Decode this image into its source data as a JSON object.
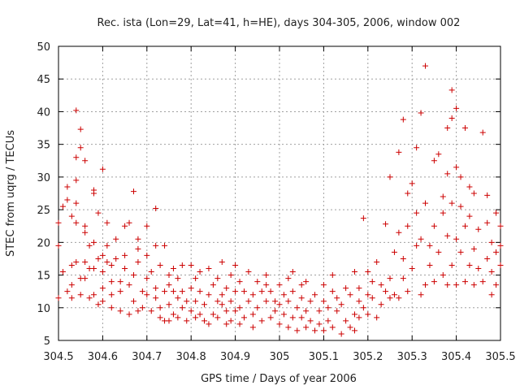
{
  "chart_data": {
    "type": "scatter",
    "title": "Rec. ista (Lon=29, Lat=41, h=HE), days 304-305, 2006, window 002",
    "xlabel": "GPS time / Days of year 2006",
    "ylabel": "STEC from uqrg / TECUs",
    "xlim": [
      304.5,
      305.5
    ],
    "ylim": [
      5,
      50
    ],
    "x_ticks": [
      "304.5",
      "304.6",
      "304.7",
      "304.8",
      "304.9",
      "305",
      "305.1",
      "305.2",
      "305.3",
      "305.4",
      "305.5"
    ],
    "y_ticks": [
      "5",
      "10",
      "15",
      "20",
      "25",
      "30",
      "35",
      "40",
      "45",
      "50"
    ],
    "x_tick_values": [
      304.5,
      304.6,
      304.7,
      304.8,
      304.9,
      305.0,
      305.1,
      305.2,
      305.3,
      305.4,
      305.5
    ],
    "y_tick_values": [
      5,
      10,
      15,
      20,
      25,
      30,
      35,
      40,
      45,
      50
    ],
    "grid": true,
    "marker": "plus",
    "color": "#cc0000",
    "points": [
      [
        304.5,
        11.5
      ],
      [
        304.5,
        19.5
      ],
      [
        304.5,
        23.0
      ],
      [
        304.51,
        25.5
      ],
      [
        304.51,
        15.5
      ],
      [
        304.52,
        26.5
      ],
      [
        304.52,
        28.5
      ],
      [
        304.52,
        12.5
      ],
      [
        304.53,
        24.0
      ],
      [
        304.53,
        16.5
      ],
      [
        304.53,
        13.5
      ],
      [
        304.53,
        11.5
      ],
      [
        304.54,
        40.2
      ],
      [
        304.54,
        33.0
      ],
      [
        304.54,
        29.5
      ],
      [
        304.54,
        26.0
      ],
      [
        304.54,
        23.0
      ],
      [
        304.54,
        17.0
      ],
      [
        304.55,
        14.5
      ],
      [
        304.55,
        12.0
      ],
      [
        304.55,
        34.5
      ],
      [
        304.55,
        37.3
      ],
      [
        304.56,
        32.5
      ],
      [
        304.56,
        22.5
      ],
      [
        304.56,
        21.5
      ],
      [
        304.56,
        17.0
      ],
      [
        304.56,
        14.5
      ],
      [
        304.57,
        11.5
      ],
      [
        304.57,
        19.5
      ],
      [
        304.57,
        16.0
      ],
      [
        304.58,
        28.0
      ],
      [
        304.58,
        27.5
      ],
      [
        304.58,
        20.0
      ],
      [
        304.58,
        16.0
      ],
      [
        304.58,
        12.0
      ],
      [
        304.59,
        10.5
      ],
      [
        304.59,
        17.5
      ],
      [
        304.59,
        24.5
      ],
      [
        304.6,
        31.2
      ],
      [
        304.6,
        18.0
      ],
      [
        304.6,
        15.5
      ],
      [
        304.6,
        13.0
      ],
      [
        304.6,
        11.0
      ],
      [
        304.61,
        17.0
      ],
      [
        304.61,
        23.0
      ],
      [
        304.61,
        19.5
      ],
      [
        304.62,
        16.5
      ],
      [
        304.62,
        14.0
      ],
      [
        304.62,
        12.0
      ],
      [
        304.62,
        10.0
      ],
      [
        304.63,
        20.5
      ],
      [
        304.63,
        17.5
      ],
      [
        304.64,
        14.0
      ],
      [
        304.64,
        9.5
      ],
      [
        304.64,
        12.5
      ],
      [
        304.65,
        18.0
      ],
      [
        304.65,
        16.0
      ],
      [
        304.65,
        22.5
      ],
      [
        304.66,
        9.0
      ],
      [
        304.66,
        13.5
      ],
      [
        304.66,
        23.0
      ],
      [
        304.67,
        27.8
      ],
      [
        304.67,
        15.0
      ],
      [
        304.67,
        11.0
      ],
      [
        304.68,
        9.5
      ],
      [
        304.68,
        19.0
      ],
      [
        304.68,
        20.5
      ],
      [
        304.68,
        17.0
      ],
      [
        304.69,
        12.5
      ],
      [
        304.69,
        10.0
      ],
      [
        304.7,
        14.5
      ],
      [
        304.7,
        22.5
      ],
      [
        304.7,
        18.0
      ],
      [
        304.7,
        12.0
      ],
      [
        304.71,
        9.5
      ],
      [
        304.71,
        15.5
      ],
      [
        304.72,
        11.5
      ],
      [
        304.72,
        13.0
      ],
      [
        304.72,
        19.5
      ],
      [
        304.72,
        25.2
      ],
      [
        304.73,
        8.5
      ],
      [
        304.73,
        10.0
      ],
      [
        304.73,
        16.5
      ],
      [
        304.74,
        12.5
      ],
      [
        304.74,
        8.0
      ],
      [
        304.74,
        19.5
      ],
      [
        304.75,
        15.0
      ],
      [
        304.75,
        13.5
      ],
      [
        304.75,
        10.5
      ],
      [
        304.75,
        8.0
      ],
      [
        304.76,
        12.5
      ],
      [
        304.76,
        9.0
      ],
      [
        304.76,
        16.0
      ],
      [
        304.77,
        11.5
      ],
      [
        304.77,
        14.5
      ],
      [
        304.77,
        8.5
      ],
      [
        304.78,
        10.0
      ],
      [
        304.78,
        16.5
      ],
      [
        304.78,
        12.5
      ],
      [
        304.79,
        8.0
      ],
      [
        304.79,
        11.0
      ],
      [
        304.8,
        9.5
      ],
      [
        304.8,
        13.0
      ],
      [
        304.8,
        16.5
      ],
      [
        304.81,
        8.5
      ],
      [
        304.81,
        11.0
      ],
      [
        304.81,
        14.5
      ],
      [
        304.82,
        12.5
      ],
      [
        304.82,
        9.0
      ],
      [
        304.82,
        15.5
      ],
      [
        304.83,
        8.0
      ],
      [
        304.83,
        10.5
      ],
      [
        304.84,
        12.0
      ],
      [
        304.84,
        16.0
      ],
      [
        304.84,
        7.5
      ],
      [
        304.85,
        9.0
      ],
      [
        304.85,
        13.5
      ],
      [
        304.86,
        11.0
      ],
      [
        304.86,
        14.5
      ],
      [
        304.86,
        8.5
      ],
      [
        304.87,
        10.5
      ],
      [
        304.87,
        17.0
      ],
      [
        304.87,
        12.0
      ],
      [
        304.88,
        7.5
      ],
      [
        304.88,
        9.5
      ],
      [
        304.88,
        13.0
      ],
      [
        304.89,
        11.0
      ],
      [
        304.89,
        15.0
      ],
      [
        304.89,
        8.0
      ],
      [
        304.9,
        16.5
      ],
      [
        304.9,
        9.5
      ],
      [
        304.9,
        12.5
      ],
      [
        304.91,
        10.0
      ],
      [
        304.91,
        7.5
      ],
      [
        304.91,
        14.0
      ],
      [
        304.92,
        12.5
      ],
      [
        304.92,
        8.5
      ],
      [
        304.93,
        11.0
      ],
      [
        304.93,
        15.5
      ],
      [
        304.94,
        9.0
      ],
      [
        304.94,
        12.0
      ],
      [
        304.94,
        7.0
      ],
      [
        304.95,
        10.0
      ],
      [
        304.95,
        14.0
      ],
      [
        304.96,
        12.5
      ],
      [
        304.96,
        8.0
      ],
      [
        304.97,
        11.0
      ],
      [
        304.97,
        13.5
      ],
      [
        304.97,
        15.0
      ],
      [
        304.98,
        8.5
      ],
      [
        304.98,
        12.5
      ],
      [
        304.99,
        9.5
      ],
      [
        304.99,
        11.0
      ],
      [
        305.0,
        13.5
      ],
      [
        305.0,
        7.5
      ],
      [
        305.0,
        10.5
      ],
      [
        305.01,
        12.0
      ],
      [
        305.01,
        9.0
      ],
      [
        305.02,
        14.5
      ],
      [
        305.02,
        7.0
      ],
      [
        305.02,
        11.0
      ],
      [
        305.03,
        8.5
      ],
      [
        305.03,
        12.5
      ],
      [
        305.03,
        15.5
      ],
      [
        305.04,
        6.5
      ],
      [
        305.04,
        10.0
      ],
      [
        305.05,
        13.5
      ],
      [
        305.05,
        8.5
      ],
      [
        305.05,
        11.5
      ],
      [
        305.06,
        7.0
      ],
      [
        305.06,
        9.5
      ],
      [
        305.06,
        14.0
      ],
      [
        305.07,
        11.0
      ],
      [
        305.07,
        8.0
      ],
      [
        305.08,
        6.5
      ],
      [
        305.08,
        12.0
      ],
      [
        305.09,
        9.5
      ],
      [
        305.09,
        7.5
      ],
      [
        305.1,
        11.0
      ],
      [
        305.1,
        13.5
      ],
      [
        305.1,
        6.5
      ],
      [
        305.11,
        10.0
      ],
      [
        305.11,
        8.0
      ],
      [
        305.12,
        12.5
      ],
      [
        305.12,
        7.0
      ],
      [
        305.12,
        15.0
      ],
      [
        305.13,
        9.5
      ],
      [
        305.13,
        11.5
      ],
      [
        305.14,
        6.0
      ],
      [
        305.14,
        10.5
      ],
      [
        305.15,
        8.0
      ],
      [
        305.15,
        13.0
      ],
      [
        305.16,
        12.0
      ],
      [
        305.16,
        7.0
      ],
      [
        305.17,
        9.0
      ],
      [
        305.17,
        6.5
      ],
      [
        305.17,
        15.5
      ],
      [
        305.18,
        11.0
      ],
      [
        305.18,
        13.0
      ],
      [
        305.18,
        8.5
      ],
      [
        305.19,
        10.0
      ],
      [
        305.19,
        23.7
      ],
      [
        305.2,
        12.0
      ],
      [
        305.2,
        9.0
      ],
      [
        305.2,
        15.5
      ],
      [
        305.21,
        11.5
      ],
      [
        305.21,
        14.0
      ],
      [
        305.22,
        8.5
      ],
      [
        305.22,
        17.0
      ],
      [
        305.23,
        13.5
      ],
      [
        305.23,
        10.5
      ],
      [
        305.24,
        12.5
      ],
      [
        305.24,
        22.8
      ],
      [
        305.25,
        14.5
      ],
      [
        305.25,
        11.5
      ],
      [
        305.25,
        30.0
      ],
      [
        305.26,
        12.0
      ],
      [
        305.26,
        18.5
      ],
      [
        305.27,
        21.5
      ],
      [
        305.27,
        33.8
      ],
      [
        305.27,
        11.5
      ],
      [
        305.28,
        14.5
      ],
      [
        305.28,
        17.5
      ],
      [
        305.28,
        38.8
      ],
      [
        305.29,
        22.5
      ],
      [
        305.29,
        27.5
      ],
      [
        305.29,
        12.5
      ],
      [
        305.3,
        16.0
      ],
      [
        305.3,
        29.0
      ],
      [
        305.31,
        19.5
      ],
      [
        305.31,
        24.5
      ],
      [
        305.31,
        34.5
      ],
      [
        305.32,
        12.0
      ],
      [
        305.32,
        20.5
      ],
      [
        305.32,
        39.8
      ],
      [
        305.33,
        13.5
      ],
      [
        305.33,
        26.0
      ],
      [
        305.33,
        47.0
      ],
      [
        305.34,
        16.5
      ],
      [
        305.34,
        19.5
      ],
      [
        305.35,
        14.0
      ],
      [
        305.35,
        22.5
      ],
      [
        305.35,
        32.5
      ],
      [
        305.36,
        33.5
      ],
      [
        305.36,
        18.5
      ],
      [
        305.37,
        15.0
      ],
      [
        305.37,
        24.5
      ],
      [
        305.37,
        27.0
      ],
      [
        305.38,
        13.5
      ],
      [
        305.38,
        21.0
      ],
      [
        305.38,
        30.5
      ],
      [
        305.38,
        37.5
      ],
      [
        305.39,
        16.5
      ],
      [
        305.39,
        26.0
      ],
      [
        305.39,
        39.0
      ],
      [
        305.39,
        43.3
      ],
      [
        305.4,
        13.5
      ],
      [
        305.4,
        20.5
      ],
      [
        305.4,
        31.5
      ],
      [
        305.4,
        40.5
      ],
      [
        305.41,
        18.5
      ],
      [
        305.41,
        25.5
      ],
      [
        305.41,
        30.0
      ],
      [
        305.42,
        14.0
      ],
      [
        305.42,
        22.5
      ],
      [
        305.42,
        37.5
      ],
      [
        305.43,
        16.5
      ],
      [
        305.43,
        28.5
      ],
      [
        305.43,
        24.0
      ],
      [
        305.44,
        19.0
      ],
      [
        305.44,
        13.5
      ],
      [
        305.44,
        27.5
      ],
      [
        305.45,
        16.0
      ],
      [
        305.45,
        22.0
      ],
      [
        305.46,
        36.8
      ],
      [
        305.46,
        14.0
      ],
      [
        305.47,
        17.5
      ],
      [
        305.47,
        23.0
      ],
      [
        305.47,
        27.2
      ],
      [
        305.48,
        12.0
      ],
      [
        305.48,
        15.5
      ],
      [
        305.48,
        20.0
      ],
      [
        305.49,
        24.5
      ],
      [
        305.49,
        18.5
      ],
      [
        305.49,
        13.5
      ],
      [
        305.5,
        19.5
      ],
      [
        305.5,
        16.5
      ],
      [
        305.5,
        22.5
      ]
    ]
  }
}
